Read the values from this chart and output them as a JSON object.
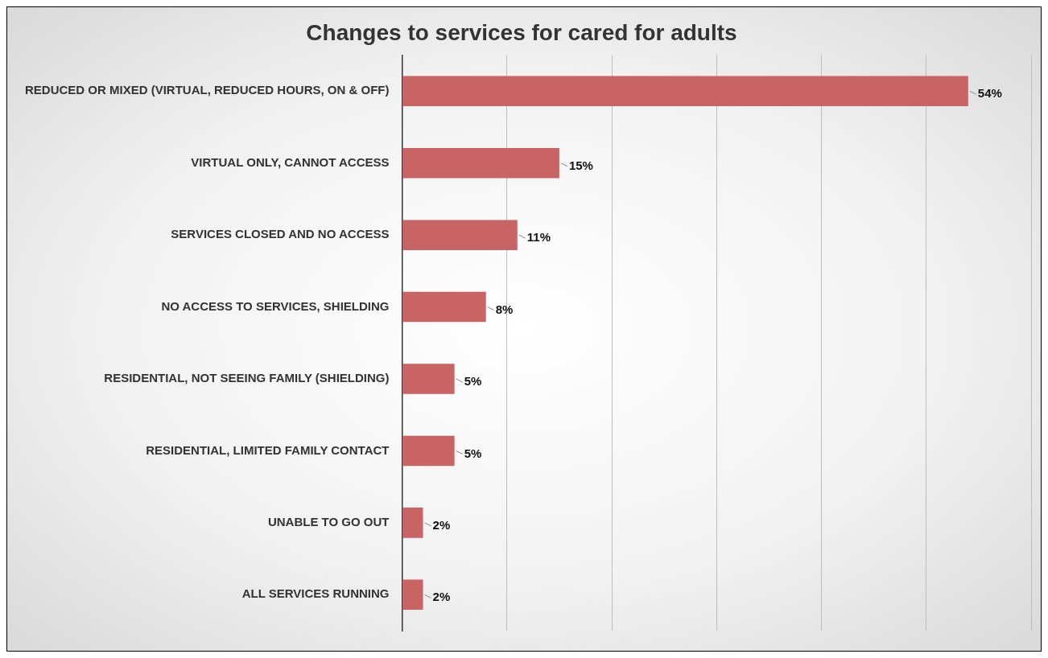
{
  "chart_data": {
    "type": "bar",
    "orientation": "horizontal",
    "title": "Changes to services for cared for adults",
    "categories": [
      "REDUCED OR MIXED (VIRTUAL, REDUCED HOURS, ON & OFF)",
      "VIRTUAL ONLY, CANNOT ACCESS",
      "SERVICES CLOSED AND NO ACCESS",
      "NO ACCESS TO SERVICES, SHIELDING",
      "RESIDENTIAL, NOT SEEING FAMILY (SHIELDING)",
      "RESIDENTIAL, LIMITED FAMILY CONTACT",
      "UNABLE TO GO OUT",
      "ALL SERVICES RUNNING"
    ],
    "values": [
      54,
      15,
      11,
      8,
      5,
      5,
      2,
      2
    ],
    "value_labels": [
      "54%",
      "15%",
      "11%",
      "8%",
      "5%",
      "5%",
      "2%",
      "2%"
    ],
    "color": "#c96464",
    "xlim": [
      0,
      60
    ],
    "xticks": [
      {
        "value": 0,
        "label": null
      },
      {
        "value": 10,
        "label": null
      },
      {
        "value": 20,
        "label": null
      },
      {
        "value": 30,
        "label": null
      },
      {
        "value": 40,
        "label": null
      },
      {
        "value": 50,
        "label": null
      },
      {
        "value": 60,
        "label": null
      }
    ],
    "grid": "x",
    "tick_labels": "y",
    "legend": false
  }
}
